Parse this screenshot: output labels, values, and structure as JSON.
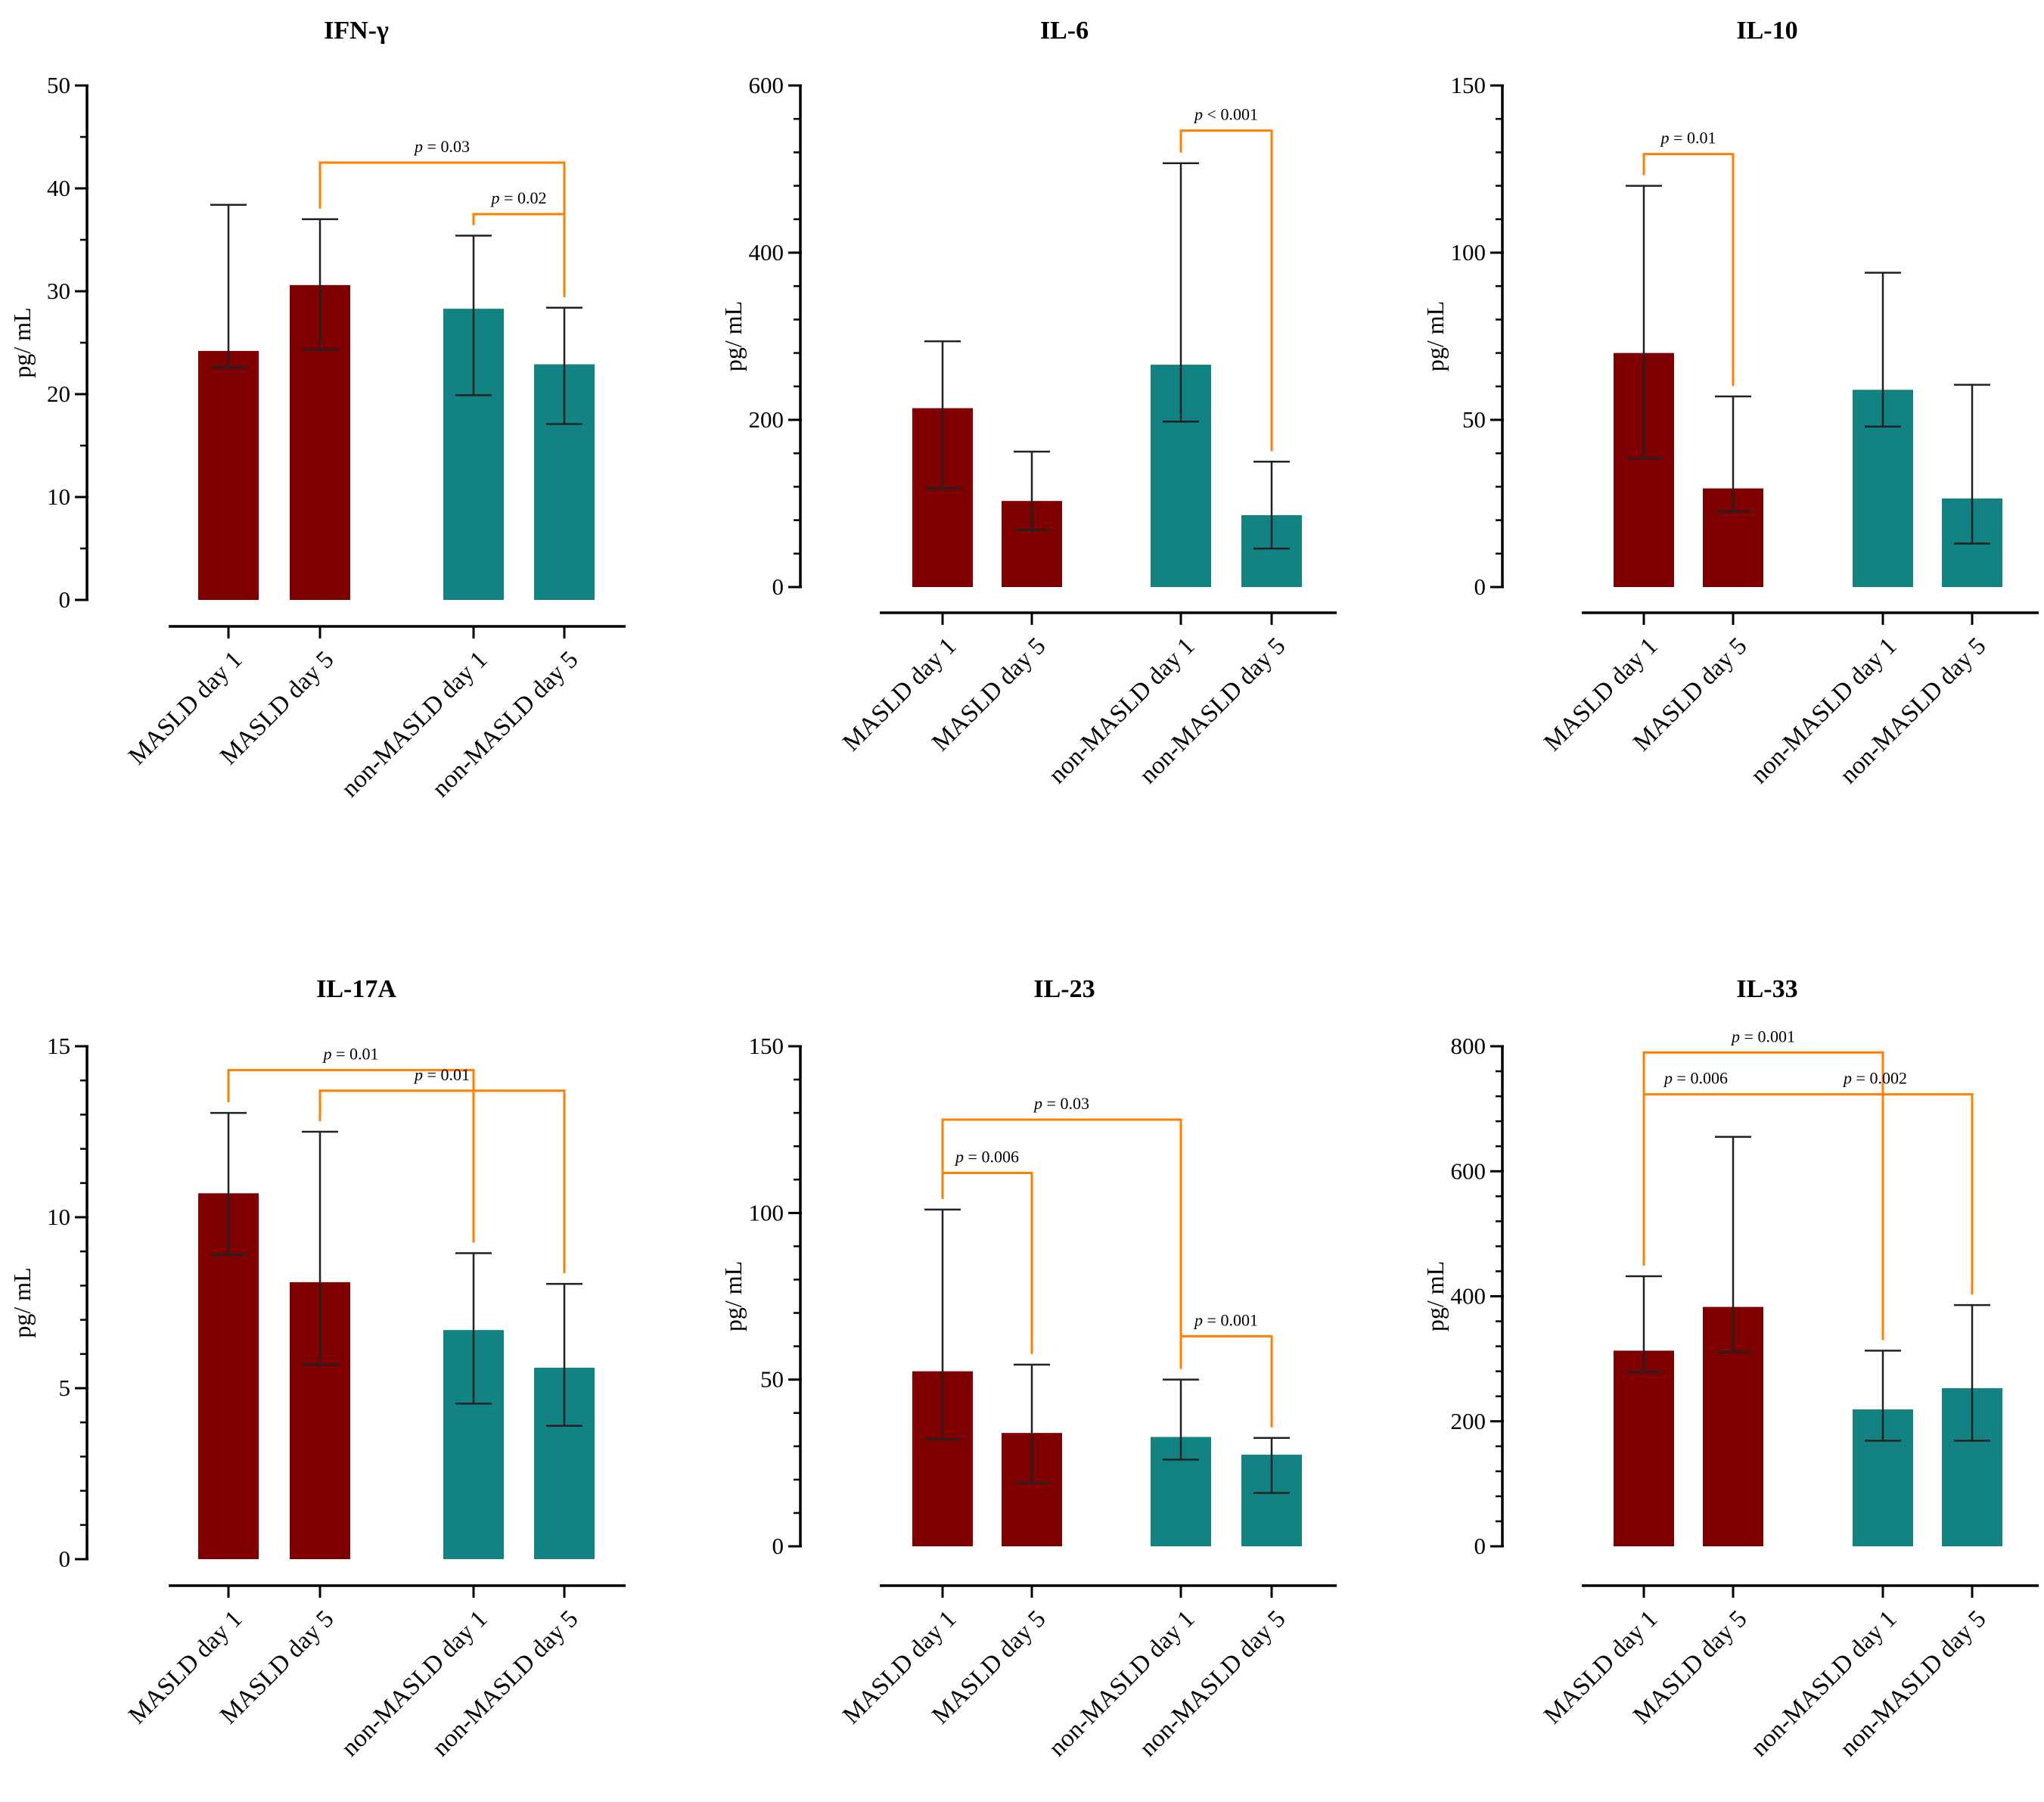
{
  "figure": {
    "category_labels": [
      "MASLD day 1",
      "MASLD day 5",
      "non-MASLD day 1",
      "non-MASLD day 5"
    ],
    "colors": {
      "masld": "#7e0000",
      "non_masld": "#128382",
      "bracket": "#ff7f00",
      "axis": "#000000",
      "errorbar": "#222222"
    }
  },
  "chart_data": [
    {
      "type": "bar",
      "title": "IFN-γ",
      "ylabel": "pg/ mL",
      "ylim": [
        0,
        50
      ],
      "yticks": [
        0,
        10,
        20,
        30,
        40,
        50
      ],
      "ytick_labels": [
        "0",
        "10",
        "20",
        "30",
        "40",
        "50"
      ],
      "minor_ticks": false,
      "categories": [
        "MASLD day 1",
        "MASLD day 5",
        "non-MASLD day 1",
        "non-MASLD day 5"
      ],
      "values": [
        24.2,
        30.6,
        28.3,
        22.9
      ],
      "err_low": [
        22.6,
        24.3,
        19.9,
        17.1
      ],
      "err_high": [
        38.4,
        37.0,
        35.4,
        28.4
      ],
      "comparisons": [
        {
          "from": 1,
          "to": 3,
          "label": "p = 0.03",
          "y": 42.5
        },
        {
          "from": 2,
          "to": 3,
          "label": "p = 0.02",
          "y": 37.5
        }
      ]
    },
    {
      "type": "bar",
      "title": "IL-6",
      "ylabel": "pg/ mL",
      "ylim": [
        0,
        600
      ],
      "yticks": [
        0,
        200,
        400,
        600
      ],
      "ytick_labels": [
        "0",
        "200",
        "400",
        "600"
      ],
      "minor_ticks": true,
      "categories": [
        "MASLD day 1",
        "MASLD day 5",
        "non-MASLD day 1",
        "non-MASLD day 5"
      ],
      "values": [
        214,
        103,
        266,
        86
      ],
      "err_low": [
        118,
        68,
        198,
        46
      ],
      "err_high": [
        294,
        162,
        507,
        150
      ],
      "comparisons": [
        {
          "from": 2,
          "to": 3,
          "label": "p < 0.001",
          "y": 546
        }
      ]
    },
    {
      "type": "bar",
      "title": "IL-10",
      "ylabel": "pg/ mL",
      "ylim": [
        0,
        150
      ],
      "yticks": [
        0,
        50,
        100,
        150
      ],
      "ytick_labels": [
        "0",
        "50",
        "100",
        "150"
      ],
      "minor_ticks": true,
      "categories": [
        "MASLD day 1",
        "MASLD day 5",
        "non-MASLD day 1",
        "non-MASLD day 5"
      ],
      "values": [
        70,
        29.5,
        59,
        26.5
      ],
      "err_low": [
        38.5,
        22.5,
        48,
        13
      ],
      "err_high": [
        120,
        57,
        94,
        60.5
      ],
      "comparisons": [
        {
          "from": 0,
          "to": 1,
          "label": "p = 0.01",
          "y": 129.5
        }
      ]
    },
    {
      "type": "bar",
      "title": "IL-17A",
      "ylabel": "pg/ mL",
      "ylim": [
        0,
        15
      ],
      "yticks": [
        0,
        5,
        10,
        15
      ],
      "ytick_labels": [
        "0",
        "5",
        "10",
        "15"
      ],
      "minor_ticks": true,
      "categories": [
        "MASLD day 1",
        "MASLD day 5",
        "non-MASLD day 1",
        "non-MASLD day 5"
      ],
      "values": [
        10.7,
        8.1,
        6.7,
        5.6
      ],
      "err_low": [
        8.9,
        5.7,
        4.55,
        3.9
      ],
      "err_high": [
        13.05,
        12.5,
        8.95,
        8.05
      ],
      "comparisons": [
        {
          "from": 0,
          "to": 2,
          "label": "p = 0.01",
          "y": 14.3
        },
        {
          "from": 1,
          "to": 3,
          "label": "p = 0.01",
          "y": 13.7
        }
      ]
    },
    {
      "type": "bar",
      "title": "IL-23",
      "ylabel": "pg/ mL",
      "ylim": [
        0,
        150
      ],
      "yticks": [
        0,
        50,
        100,
        150
      ],
      "ytick_labels": [
        "0",
        "50",
        "100",
        "150"
      ],
      "minor_ticks": true,
      "categories": [
        "MASLD day 1",
        "MASLD day 5",
        "non-MASLD day 1",
        "non-MASLD day 5"
      ],
      "values": [
        52.5,
        34,
        32.8,
        27.5
      ],
      "err_low": [
        32,
        19,
        26,
        16
      ],
      "err_high": [
        101,
        54.5,
        50,
        32.5
      ],
      "comparisons": [
        {
          "from": 0,
          "to": 2,
          "label": "p = 0.03",
          "y": 128
        },
        {
          "from": 0,
          "to": 1,
          "label": "p = 0.006",
          "y": 112
        },
        {
          "from": 2,
          "to": 3,
          "label": "p = 0.001",
          "y": 63
        }
      ]
    },
    {
      "type": "bar",
      "title": "IL-33",
      "ylabel": "pg/ mL",
      "ylim": [
        0,
        800
      ],
      "yticks": [
        0,
        200,
        400,
        600,
        800
      ],
      "ytick_labels": [
        "0",
        "200",
        "400",
        "600",
        "800"
      ],
      "minor_ticks": true,
      "categories": [
        "MASLD day 1",
        "MASLD day 5",
        "non-MASLD day 1",
        "non-MASLD day 5"
      ],
      "values": [
        313,
        383,
        219,
        253
      ],
      "err_low": [
        279,
        311,
        169,
        169
      ],
      "err_high": [
        432,
        655,
        313,
        386
      ],
      "comparisons": [
        {
          "from": 0,
          "to": 2,
          "label": "p = 0.001",
          "y": 790
        },
        {
          "from": 0,
          "to": 3,
          "label": "p = 0.006",
          "y": 723
        },
        {
          "from": 0,
          "to": 3,
          "label": "p = 0.002",
          "y": 723,
          "label_pos": "right"
        }
      ]
    }
  ]
}
